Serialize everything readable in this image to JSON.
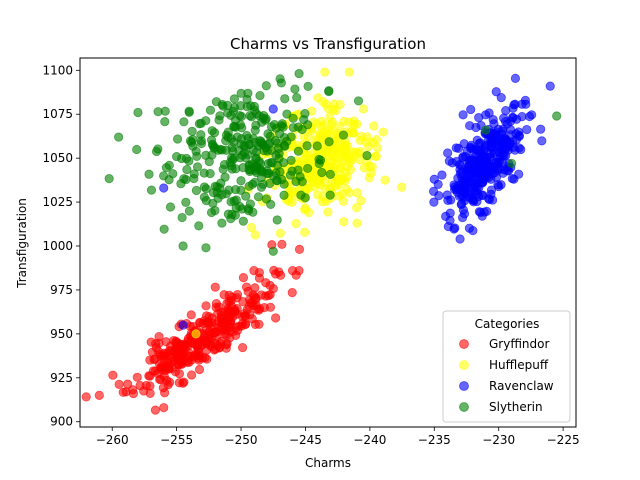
{
  "chart_data": {
    "type": "scatter",
    "title": "Charms vs Transfiguration",
    "xlabel": "Charms",
    "ylabel": "Transfiguration",
    "xlim": [
      -262.5,
      -224
    ],
    "ylim": [
      897,
      1107
    ],
    "xticks": [
      -260,
      -255,
      -250,
      -245,
      -240,
      -235,
      -230,
      -225
    ],
    "yticks": [
      900,
      925,
      950,
      975,
      1000,
      1025,
      1050,
      1075,
      1100
    ],
    "grid": false,
    "legend": {
      "title": "Categories",
      "placement": "lower-right"
    },
    "marker_alpha": 0.6,
    "series": [
      {
        "name": "Gryffindor",
        "color": "#ff0000",
        "cluster": {
          "center": [
            -253,
            947
          ],
          "spread": [
            2.6,
            15
          ],
          "correlation": 0.85,
          "count": 320,
          "seed": 11
        },
        "extra": [
          [
            -256,
            908
          ],
          [
            -261,
            915
          ],
          [
            -249,
            986
          ],
          [
            -246,
            986
          ],
          [
            -245.5,
            986
          ],
          [
            -253,
            950
          ]
        ]
      },
      {
        "name": "Hufflepuff",
        "color": "#ffff00",
        "cluster": {
          "center": [
            -244,
            1047
          ],
          "spread": [
            1.9,
            15
          ],
          "correlation": 0.2,
          "count": 330,
          "seed": 23
        },
        "extra": [
          [
            -243.5,
            1099
          ],
          [
            -239.5,
            1051
          ],
          [
            -240.5,
            1078
          ],
          [
            -241,
            1013
          ],
          [
            -253.5,
            950
          ]
        ]
      },
      {
        "name": "Ravenclaw",
        "color": "#0000ff",
        "cluster": {
          "center": [
            -231,
            1048
          ],
          "spread": [
            1.5,
            15
          ],
          "correlation": 0.6,
          "count": 330,
          "seed": 37
        },
        "extra": [
          [
            -256,
            1033
          ],
          [
            -254.5,
            955
          ],
          [
            -247.5,
            1078
          ],
          [
            -226,
            1091
          ],
          [
            -233,
            1004
          ],
          [
            -235,
            1038
          ]
        ]
      },
      {
        "name": "Slytherin",
        "color": "#008000",
        "cluster": {
          "center": [
            -250,
            1052
          ],
          "spread": [
            3.0,
            18
          ],
          "correlation": 0.1,
          "count": 300,
          "seed": 53
        },
        "extra": [
          [
            -259.5,
            1062
          ],
          [
            -258,
            1076
          ],
          [
            -254.5,
            1000
          ],
          [
            -247.5,
            997
          ],
          [
            -225.5,
            1074
          ],
          [
            -231,
            1066
          ],
          [
            -229,
            1047
          ]
        ]
      }
    ]
  }
}
